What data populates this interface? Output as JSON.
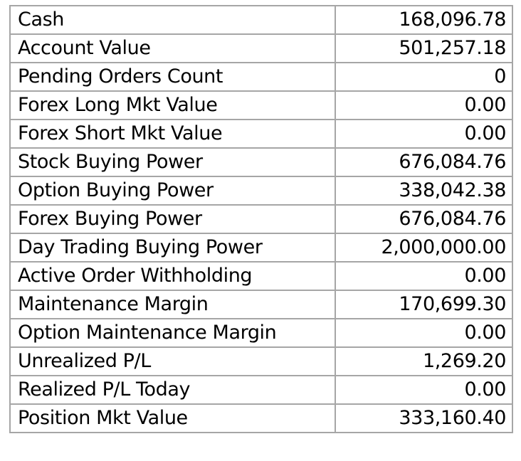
{
  "account_summary": {
    "rows": [
      {
        "label": "Cash",
        "value": "168,096.78"
      },
      {
        "label": "Account Value",
        "value": "501,257.18"
      },
      {
        "label": "Pending Orders Count",
        "value": "0"
      },
      {
        "label": "Forex Long Mkt Value",
        "value": "0.00"
      },
      {
        "label": "Forex Short Mkt Value",
        "value": "0.00"
      },
      {
        "label": "Stock Buying Power",
        "value": "676,084.76"
      },
      {
        "label": "Option Buying Power",
        "value": "338,042.38"
      },
      {
        "label": "Forex Buying Power",
        "value": "676,084.76"
      },
      {
        "label": "Day Trading Buying Power",
        "value": "2,000,000.00"
      },
      {
        "label": "Active Order Withholding",
        "value": "0.00"
      },
      {
        "label": "Maintenance Margin",
        "value": "170,699.30"
      },
      {
        "label": "Option Maintenance Margin",
        "value": "0.00"
      },
      {
        "label": "Unrealized P/L",
        "value": "1,269.20"
      },
      {
        "label": "Realized P/L Today",
        "value": "0.00"
      },
      {
        "label": "Position Mkt Value",
        "value": "333,160.40"
      }
    ]
  }
}
